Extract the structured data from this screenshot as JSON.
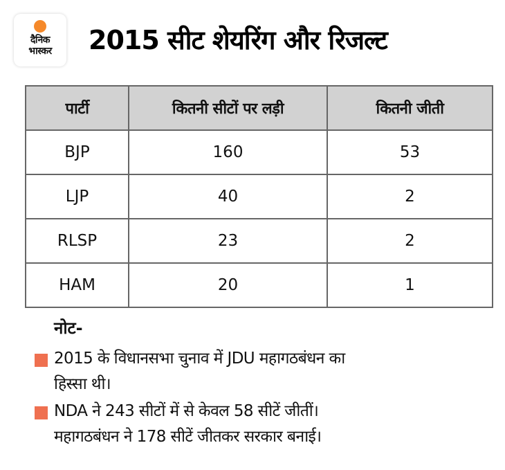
{
  "brand": {
    "logo_line1": "दैनिक",
    "logo_line2": "भास्कर",
    "accent_color": "#f5892a"
  },
  "title": "2015 सीट शेयरिंग और रिजल्ट",
  "table": {
    "headers": [
      "पार्टी",
      "कितनी सीटों पर लड़ी",
      "कितनी जीती"
    ],
    "rows": [
      [
        "BJP",
        "160",
        "53"
      ],
      [
        "LJP",
        "40",
        "2"
      ],
      [
        "RLSP",
        "23",
        "2"
      ],
      [
        "HAM",
        "20",
        "1"
      ]
    ],
    "header_bg": "#d2d2d2"
  },
  "notes": {
    "heading": "नोट-",
    "bullet_color": "#ef7050",
    "items": [
      {
        "lines": [
          "2015 के विधानसभा चुनाव में JDU महागठबंधन का",
          "हिस्सा थी।"
        ]
      },
      {
        "lines": [
          "NDA ने 243 सीटों में से केवल 58 सीटें जीतीं।",
          "महागठबंधन ने 178 सीटें जीतकर सरकार बनाई।"
        ]
      }
    ]
  }
}
